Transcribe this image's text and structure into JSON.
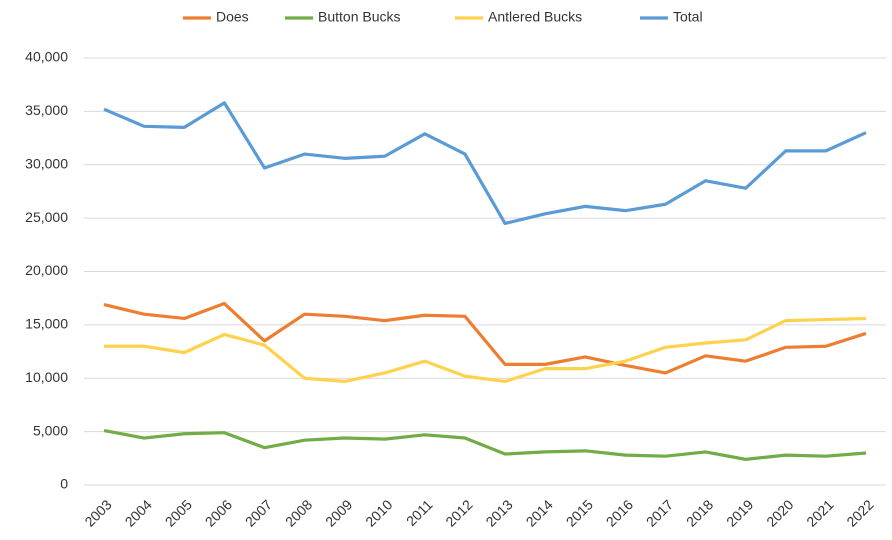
{
  "chart_data": {
    "type": "line",
    "categories": [
      "2003",
      "2004",
      "2005",
      "2006",
      "2007",
      "2008",
      "2009",
      "2010",
      "2011",
      "2012",
      "2013",
      "2014",
      "2015",
      "2016",
      "2017",
      "2018",
      "2019",
      "2020",
      "2021",
      "2022"
    ],
    "series": [
      {
        "name": "Does",
        "color": "#ed7d31",
        "values": [
          16900,
          16000,
          15600,
          17000,
          13500,
          16000,
          15800,
          15400,
          15900,
          15800,
          11300,
          11300,
          12000,
          11200,
          10500,
          12100,
          11600,
          12900,
          13000,
          14200
        ]
      },
      {
        "name": "Button Bucks",
        "color": "#70ad47",
        "values": [
          5100,
          4400,
          4800,
          4900,
          3500,
          4200,
          4400,
          4300,
          4700,
          4400,
          2900,
          3100,
          3200,
          2800,
          2700,
          3100,
          2400,
          2800,
          2700,
          3000
        ]
      },
      {
        "name": "Antlered Bucks",
        "color": "#ffd24d",
        "values": [
          13000,
          13000,
          12400,
          14100,
          13100,
          10000,
          9700,
          10500,
          11600,
          10200,
          9700,
          10900,
          10900,
          11600,
          12900,
          13300,
          13600,
          15400,
          15500,
          15600
        ]
      },
      {
        "name": "Total",
        "color": "#5b9bd5",
        "values": [
          35200,
          33600,
          33500,
          35800,
          29700,
          31000,
          30600,
          30800,
          32900,
          31000,
          24500,
          25400,
          26100,
          25700,
          26300,
          28500,
          27800,
          31300,
          31300,
          33000
        ]
      }
    ],
    "ylim": [
      0,
      40000
    ],
    "yticks": [
      0,
      {
        "value": 5000,
        "label": "5,000"
      },
      {
        "value": 10000,
        "label": "10,000"
      },
      {
        "value": 15000,
        "label": "15,000"
      },
      {
        "value": 20000,
        "label": "20,000"
      },
      {
        "value": 25000,
        "label": "25,000"
      },
      {
        "value": 30000,
        "label": "30,000"
      },
      {
        "value": 35000,
        "label": "35,000"
      },
      {
        "value": 40000,
        "label": "40,000"
      }
    ],
    "grid": true,
    "legend": "top"
  }
}
